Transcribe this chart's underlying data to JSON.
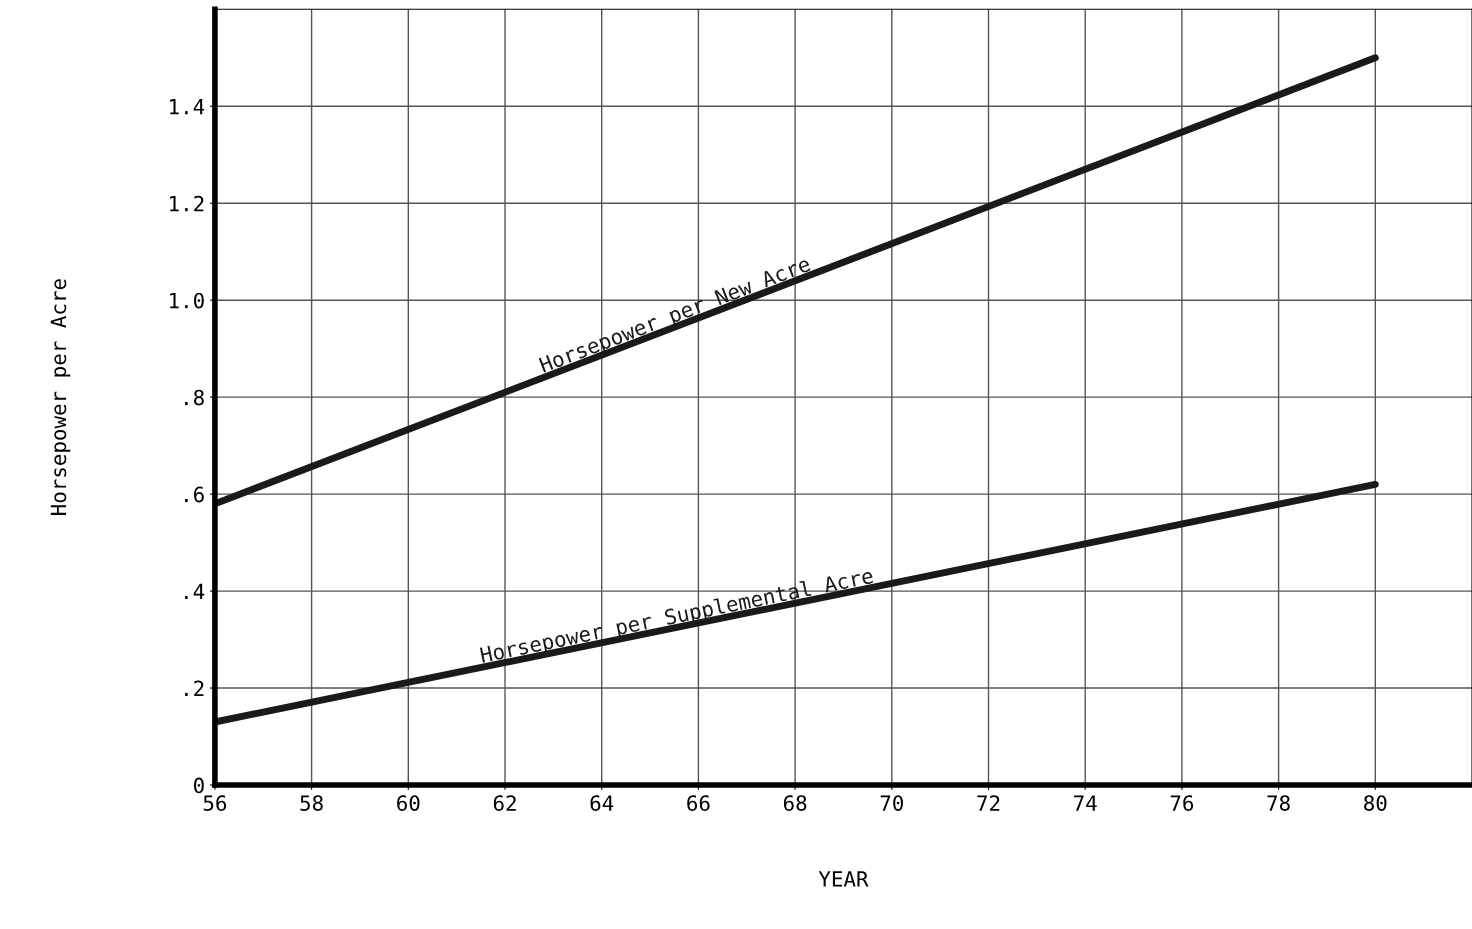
{
  "chart_data": {
    "type": "line",
    "xlabel": "YEAR",
    "ylabel": "Horsepower per Acre",
    "x": [
      56,
      80
    ],
    "series": [
      {
        "name": "Horsepower per New Acre",
        "color": "#1a1a1a",
        "values": [
          0.58,
          1.5
        ]
      },
      {
        "name": "Horsepower per Supplemental Acre",
        "color": "#1a1a1a",
        "values": [
          0.13,
          0.62
        ]
      }
    ],
    "xlim": [
      56,
      82
    ],
    "ylim": [
      0,
      1.6
    ],
    "xticks": [
      56,
      58,
      60,
      62,
      64,
      66,
      68,
      70,
      72,
      74,
      76,
      78,
      80
    ],
    "yticks": [
      0,
      {
        "value": 0.2,
        "label": ".2"
      },
      {
        "value": 0.4,
        "label": ".4"
      },
      {
        "value": 0.6,
        "label": ".6"
      },
      {
        "value": 0.8,
        "label": ".8"
      },
      {
        "value": 1.0,
        "label": "1.0"
      },
      {
        "value": 1.2,
        "label": "1.2"
      },
      {
        "value": 1.4,
        "label": "1.4"
      }
    ],
    "grid": true,
    "legend": false,
    "marker": "none",
    "line_style": "solid"
  }
}
